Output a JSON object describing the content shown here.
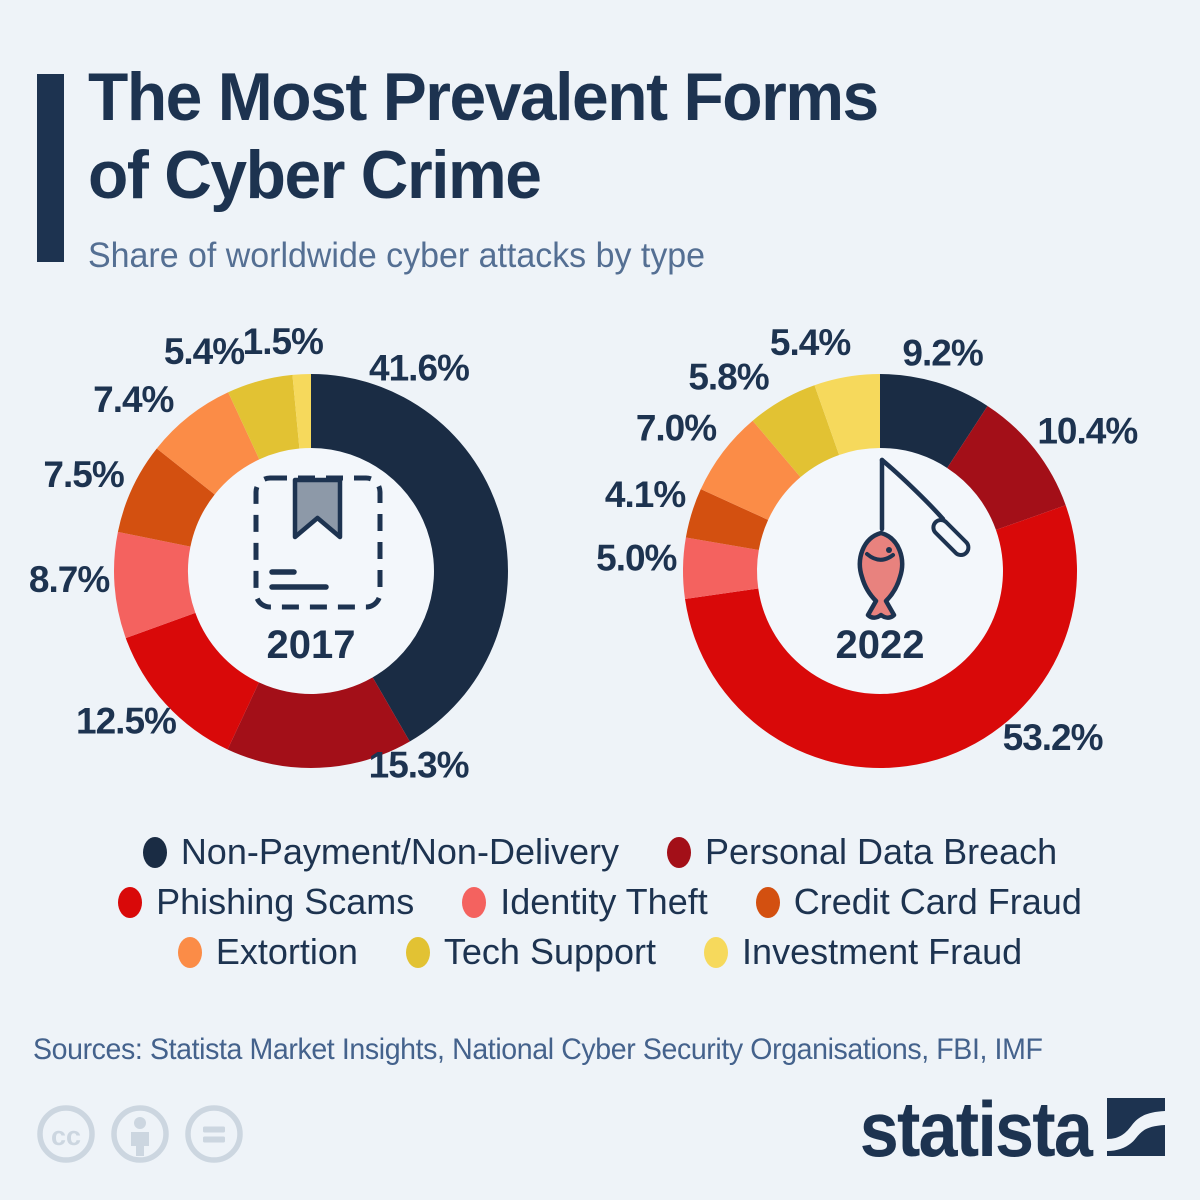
{
  "header": {
    "title_line1": "The Most Prevalent Forms",
    "title_line2": "of Cyber Crime",
    "subtitle": "Share of worldwide cyber attacks by type"
  },
  "chart_data": {
    "type": "pie",
    "variant": "donut",
    "title": "The Most Prevalent Forms of Cyber Crime",
    "subtitle": "Share of worldwide cyber attacks by type",
    "unit": "%",
    "categories": [
      "Non-Payment/Non-Delivery",
      "Personal Data Breach",
      "Phishing Scams",
      "Identity Theft",
      "Credit Card Fraud",
      "Extortion",
      "Tech Support",
      "Investment Fraud"
    ],
    "colors": [
      "#1a2c44",
      "#a30f18",
      "#d90909",
      "#f4625f",
      "#d35010",
      "#fb8c47",
      "#e2c233",
      "#f6d95c"
    ],
    "charts": [
      {
        "year": "2017",
        "center_icon": "document-bookmark-icon",
        "values": [
          41.6,
          15.3,
          12.5,
          8.7,
          7.5,
          7.4,
          5.4,
          1.5
        ],
        "labels": [
          "41.6%",
          "15.3%",
          "12.5%",
          "8.7%",
          "7.5%",
          "7.4%",
          "5.4%",
          "1.5%"
        ],
        "label_pos": [
          [
            28,
            230
          ],
          [
            151,
            222
          ],
          [
            231,
            238
          ],
          [
            268,
            242
          ],
          [
            293,
            247
          ],
          [
            314,
            247
          ],
          [
            334,
            244
          ],
          [
            353,
            231
          ]
        ]
      },
      {
        "year": "2022",
        "center_icon": "phishing-hook-icon",
        "values": [
          9.2,
          10.4,
          53.2,
          5.0,
          4.1,
          7.0,
          5.8,
          5.4
        ],
        "labels": [
          "9.2%",
          "10.4%",
          "53.2%",
          "5.0%",
          "4.1%",
          "7.0%",
          "5.8%",
          "5.4%"
        ],
        "label_pos": [
          [
            16,
            227
          ],
          [
            56,
            250
          ],
          [
            134,
            240
          ],
          [
            273,
            244
          ],
          [
            288,
            247
          ],
          [
            305,
            249
          ],
          [
            322,
            246
          ],
          [
            343,
            239
          ]
        ]
      }
    ],
    "legend_rows": [
      [
        0,
        1
      ],
      [
        2,
        3,
        4
      ],
      [
        5,
        6,
        7
      ]
    ],
    "layout": {
      "outer_radius": 197,
      "inner_radius": 123,
      "start_angle_deg": 0,
      "clockwise": true,
      "hole_fill": "#f3f7fb"
    }
  },
  "footer": {
    "sources": "Sources: Statista Market Insights, National Cyber Security Organisations, FBI, IMF",
    "brand": "statista",
    "license_icons": [
      "cc-icon",
      "attribution-icon",
      "no-derivatives-icon"
    ]
  }
}
